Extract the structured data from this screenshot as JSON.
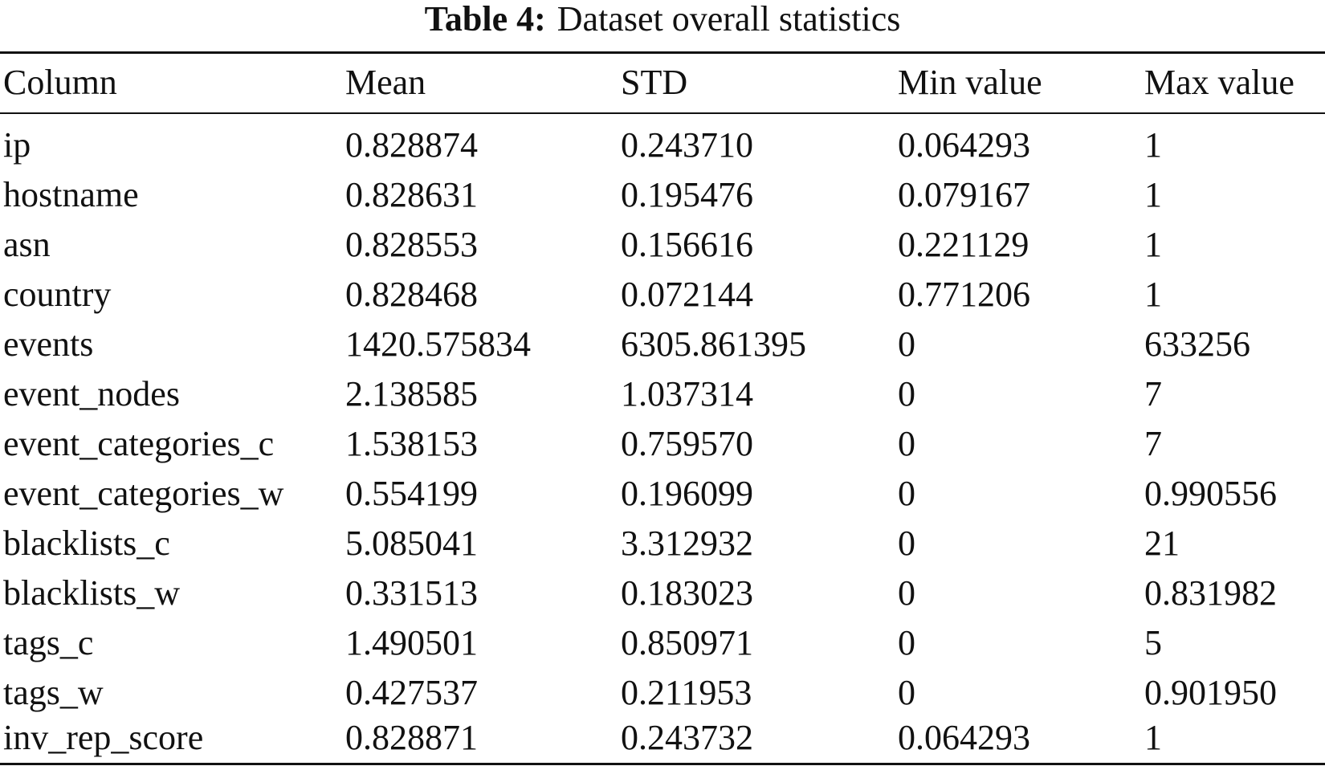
{
  "caption": {
    "label": "Table 4:",
    "title": "Dataset overall statistics"
  },
  "table": {
    "headers": [
      "Column",
      "Mean",
      "STD",
      "Min value",
      "Max value"
    ],
    "rows": [
      [
        "ip",
        "0.828874",
        "0.243710",
        "0.064293",
        "1"
      ],
      [
        "hostname",
        "0.828631",
        "0.195476",
        "0.079167",
        "1"
      ],
      [
        "asn",
        "0.828553",
        "0.156616",
        "0.221129",
        "1"
      ],
      [
        "country",
        "0.828468",
        "0.072144",
        "0.771206",
        "1"
      ],
      [
        "events",
        "1420.575834",
        "6305.861395",
        "0",
        "633256"
      ],
      [
        "event_nodes",
        "2.138585",
        "1.037314",
        "0",
        "7"
      ],
      [
        "event_categories_c",
        "1.538153",
        "0.759570",
        "0",
        "7"
      ],
      [
        "event_categories_w",
        "0.554199",
        "0.196099",
        "0",
        "0.990556"
      ],
      [
        "blacklists_c",
        "5.085041",
        "3.312932",
        "0",
        "21"
      ],
      [
        "blacklists_w",
        "0.331513",
        "0.183023",
        "0",
        "0.831982"
      ],
      [
        "tags_c",
        "1.490501",
        "0.850971",
        "0",
        "5"
      ],
      [
        "tags_w",
        "0.427537",
        "0.211953",
        "0",
        "0.901950"
      ],
      [
        "inv_rep_score",
        "0.828871",
        "0.243732",
        "0.064293",
        "1"
      ]
    ]
  }
}
